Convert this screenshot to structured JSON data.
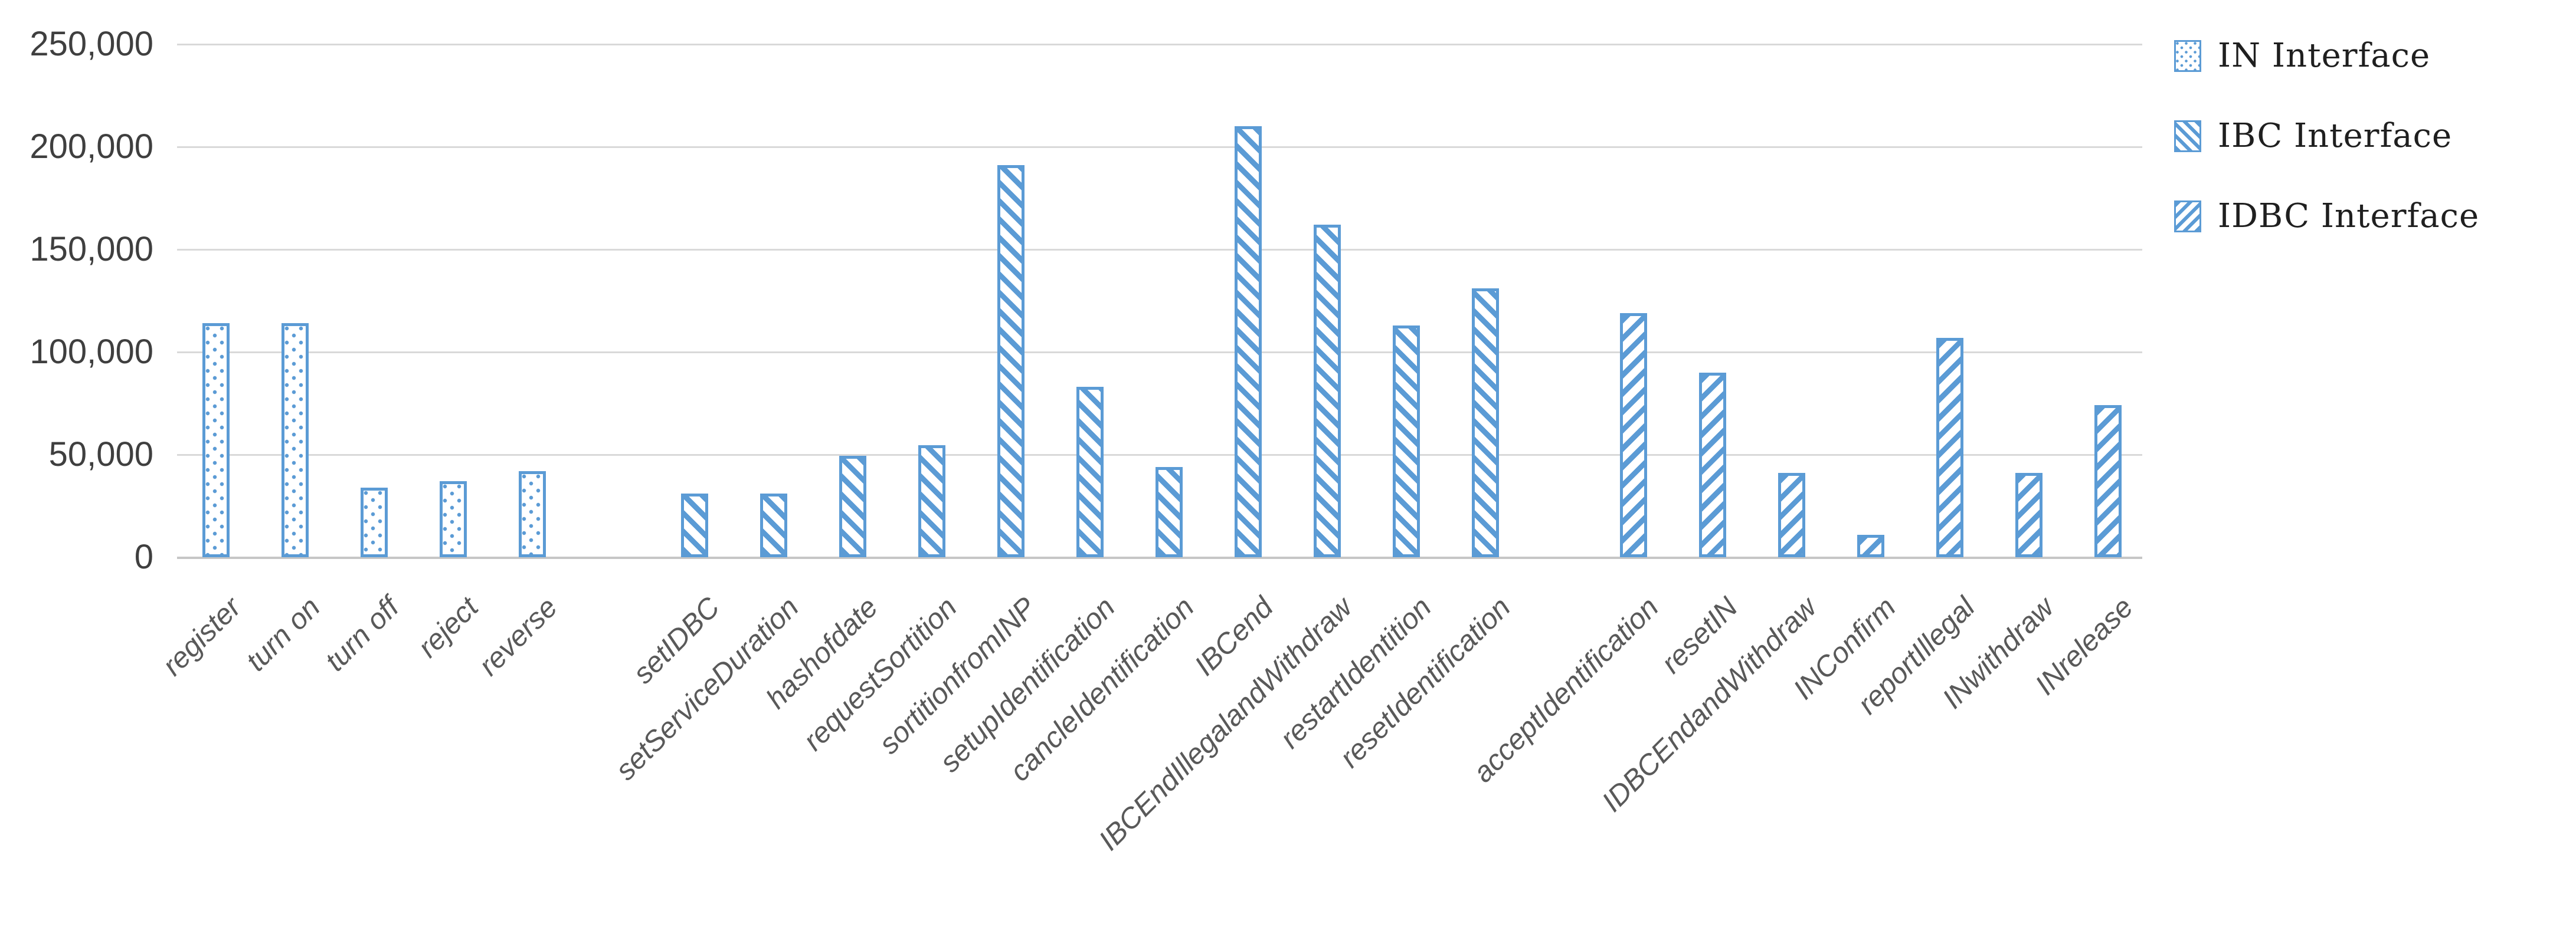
{
  "chart_data": {
    "type": "bar",
    "title": "",
    "xlabel": "",
    "ylabel": "",
    "ylim": [
      0,
      250000
    ],
    "ytick_step": 50000,
    "ytick_labels": [
      "250,000",
      "200,000",
      "150,000",
      "100,000",
      "50,000",
      "0"
    ],
    "grid": true,
    "legend_position": "top-right",
    "bar_color": "#5B9BD5",
    "gridline_color": "#D9D9D9",
    "series": [
      {
        "name": "IN Interface",
        "pattern": "dots"
      },
      {
        "name": "IBC Interface",
        "pattern": "diag-back"
      },
      {
        "name": "IDBC Interface",
        "pattern": "diag-forward"
      }
    ],
    "points": [
      {
        "category": "register",
        "series": "IN Interface",
        "value": 114000
      },
      {
        "category": "turn on",
        "series": "IN Interface",
        "value": 114000
      },
      {
        "category": "turn off",
        "series": "IN Interface",
        "value": 34000
      },
      {
        "category": "reject",
        "series": "IN Interface",
        "value": 37000
      },
      {
        "category": "reverse",
        "series": "IN Interface",
        "value": 42000
      },
      {
        "category": "setIDBC",
        "series": "IBC Interface",
        "value": 31000
      },
      {
        "category": "setServiceDuration",
        "series": "IBC Interface",
        "value": 31000
      },
      {
        "category": "hashofdate",
        "series": "IBC Interface",
        "value": 49500
      },
      {
        "category": "requestSortition",
        "series": "IBC Interface",
        "value": 54500
      },
      {
        "category": "sortitionfromINP",
        "series": "IBC Interface",
        "value": 191000
      },
      {
        "category": "setupIdentification",
        "series": "IBC Interface",
        "value": 83000
      },
      {
        "category": "cancleIdentification",
        "series": "IBC Interface",
        "value": 44000
      },
      {
        "category": "IBCend",
        "series": "IBC Interface",
        "value": 210000
      },
      {
        "category": "IBCEndIllegalandWithdraw",
        "series": "IBC Interface",
        "value": 162000
      },
      {
        "category": "restartIdentition",
        "series": "IBC Interface",
        "value": 113000
      },
      {
        "category": "resetIdentification",
        "series": "IBC Interface",
        "value": 131000
      },
      {
        "category": "acceptIdentification",
        "series": "IDBC Interface",
        "value": 119000
      },
      {
        "category": "resetIN",
        "series": "IDBC Interface",
        "value": 90000
      },
      {
        "category": "IDBCEndandWithdraw",
        "series": "IDBC Interface",
        "value": 41000
      },
      {
        "category": "INConfirm",
        "series": "IDBC Interface",
        "value": 11000
      },
      {
        "category": "reportIllegal",
        "series": "IDBC Interface",
        "value": 107000
      },
      {
        "category": "INwithdraw",
        "series": "IDBC Interface",
        "value": 41000
      },
      {
        "category": "INrelease",
        "series": "IDBC Interface",
        "value": 74000
      }
    ]
  }
}
